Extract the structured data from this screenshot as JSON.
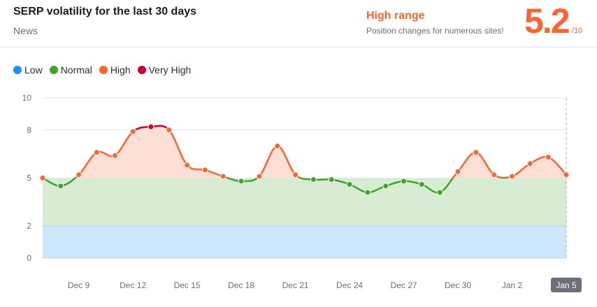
{
  "header": {
    "title": "SERP volatility for the last 30 days",
    "category": "News",
    "range_label": "High range",
    "range_desc": "Position changes for numerous sites!",
    "score": "5.2",
    "score_max": "/10"
  },
  "colors": {
    "low": "#1a90ff",
    "normal": "#3ca627",
    "high": "#ff642d",
    "very_high": "#d1002f",
    "accent": "#ff642d"
  },
  "chart_data": {
    "type": "line",
    "legend": [
      {
        "name": "Low",
        "color": "#1a90ff"
      },
      {
        "name": "Normal",
        "color": "#3ca627"
      },
      {
        "name": "High",
        "color": "#ff642d"
      },
      {
        "name": "Very High",
        "color": "#d1002f"
      }
    ],
    "legend_position": "top-left",
    "ylim": [
      0,
      10
    ],
    "yticks": [
      "0",
      "2",
      "5",
      "8",
      "10"
    ],
    "bands": [
      {
        "from": 0,
        "to": 2,
        "name": "Low"
      },
      {
        "from": 2,
        "to": 5,
        "name": "Normal"
      },
      {
        "from": 5,
        "to": 8,
        "name": "High"
      },
      {
        "from": 8,
        "to": 10,
        "name": "Very High"
      }
    ],
    "x": [
      "Dec 7",
      "Dec 8",
      "Dec 9",
      "Dec 10",
      "Dec 11",
      "Dec 12",
      "Dec 13",
      "Dec 14",
      "Dec 15",
      "Dec 16",
      "Dec 17",
      "Dec 18",
      "Dec 19",
      "Dec 20",
      "Dec 21",
      "Dec 22",
      "Dec 23",
      "Dec 24",
      "Dec 25",
      "Dec 26",
      "Dec 27",
      "Dec 28",
      "Dec 29",
      "Dec 30",
      "Dec 31",
      "Jan 1",
      "Jan 2",
      "Jan 3",
      "Jan 4",
      "Jan 5"
    ],
    "values": [
      5.0,
      4.5,
      5.2,
      6.6,
      6.4,
      7.9,
      8.2,
      8.0,
      5.8,
      5.5,
      5.1,
      4.8,
      5.1,
      7.0,
      5.2,
      4.9,
      4.9,
      4.6,
      4.1,
      4.5,
      4.8,
      4.6,
      4.1,
      5.4,
      6.6,
      5.2,
      5.1,
      5.9,
      6.3,
      5.2
    ],
    "xtick_labels": [
      "Dec 9",
      "Dec 12",
      "Dec 15",
      "Dec 18",
      "Dec 21",
      "Dec 24",
      "Dec 27",
      "Dec 30",
      "Jan 2"
    ],
    "highlighted_x": "Jan 5",
    "grid": true
  }
}
